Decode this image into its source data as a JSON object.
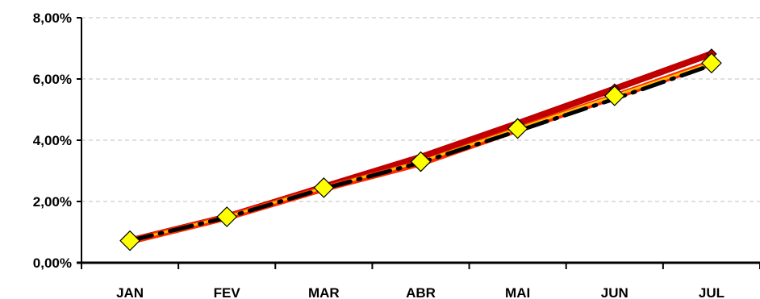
{
  "chart_data": {
    "type": "line",
    "categories": [
      "JAN",
      "FEV",
      "MAR",
      "ABR",
      "MAI",
      "JUN",
      "JUL"
    ],
    "y_ticks": [
      "0,00%",
      "2,00%",
      "4,00%",
      "6,00%",
      "8,00%"
    ],
    "ylim": [
      0,
      8
    ],
    "grid": true,
    "legend": "none",
    "series": [
      {
        "values": [
          0.72,
          1.5,
          2.48,
          3.45,
          4.55,
          5.68,
          6.82
        ],
        "color": "#c00000",
        "marker": "diamond",
        "style": "thick"
      },
      {
        "values": [
          0.7,
          1.48,
          2.42,
          3.25,
          4.35,
          5.42,
          6.52
        ],
        "color": "#ff2a00",
        "marker": "none",
        "style": "thick"
      },
      {
        "values": [
          0.72,
          1.5,
          2.45,
          3.3,
          4.38,
          5.45,
          6.52
        ],
        "color": "#ffc000",
        "marker": "diamond",
        "marker_color": "#ffff00",
        "style": "thin"
      },
      {
        "values": [
          0.72,
          1.48,
          2.42,
          3.27,
          4.3,
          5.35,
          6.45
        ],
        "color": "#000000",
        "marker": "none",
        "style": "dash-dot"
      }
    ]
  }
}
